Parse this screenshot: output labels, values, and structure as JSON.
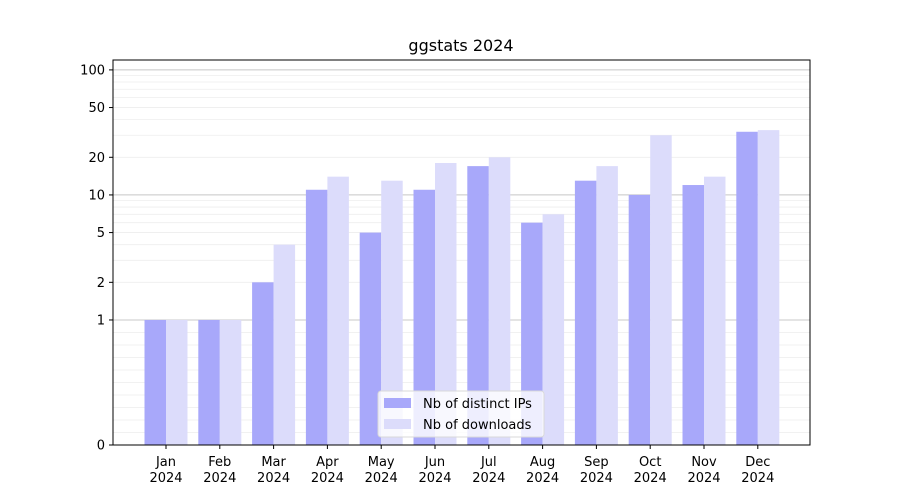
{
  "chart_data": {
    "type": "bar",
    "title": "ggstats 2024",
    "xlabel": "",
    "ylabel": "",
    "y_scale": "symlog",
    "ylim": [
      0,
      120
    ],
    "y_ticks": [
      0,
      1,
      2,
      5,
      10,
      20,
      50,
      100
    ],
    "categories": [
      [
        "Jan",
        "2024"
      ],
      [
        "Feb",
        "2024"
      ],
      [
        "Mar",
        "2024"
      ],
      [
        "Apr",
        "2024"
      ],
      [
        "May",
        "2024"
      ],
      [
        "Jun",
        "2024"
      ],
      [
        "Jul",
        "2024"
      ],
      [
        "Aug",
        "2024"
      ],
      [
        "Sep",
        "2024"
      ],
      [
        "Oct",
        "2024"
      ],
      [
        "Nov",
        "2024"
      ],
      [
        "Dec",
        "2024"
      ]
    ],
    "series": [
      {
        "name": "Nb of distinct IPs",
        "color": "#a8a8fa",
        "values": [
          1,
          1,
          2,
          11,
          5,
          11,
          17,
          6,
          13,
          10,
          12,
          32
        ]
      },
      {
        "name": "Nb of downloads",
        "color": "#dcdcfb",
        "values": [
          1,
          1,
          4,
          14,
          13,
          18,
          20,
          7,
          17,
          30,
          14,
          33
        ]
      }
    ],
    "legend_position": "lower-center",
    "grid": true
  }
}
